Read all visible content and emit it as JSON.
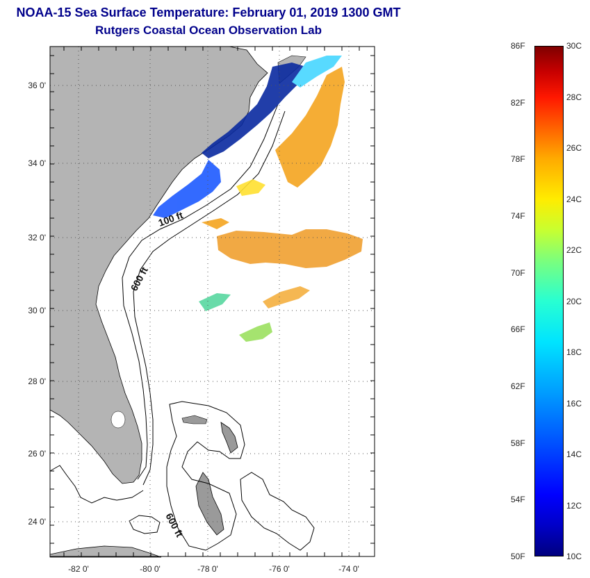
{
  "header": {
    "title": "NOAA-15 Sea Surface Temperature:  February 01, 2019 1300 GMT",
    "subtitle": "Rutgers Coastal Ocean Observation Lab"
  },
  "map": {
    "lat_labels": [
      "36 0'",
      "34 0'",
      "32 0'",
      "30 0'",
      "28 0'",
      "26 0'",
      "24 0'"
    ],
    "lon_labels": [
      "-82 0'",
      "-80 0'",
      "-78 0'",
      "-76 0'",
      "-74 0'"
    ],
    "contour_labels": [
      "100 ft",
      "600 ft",
      "600 ft"
    ],
    "colors": {
      "land": "#b4b4b4",
      "grid": "#555555"
    }
  },
  "colorbar": {
    "fahrenheit": [
      "86F",
      "82F",
      "78F",
      "74F",
      "70F",
      "66F",
      "62F",
      "58F",
      "54F",
      "50F"
    ],
    "celsius": [
      "30C",
      "28C",
      "26C",
      "24C",
      "22C",
      "20C",
      "18C",
      "16C",
      "14C",
      "12C",
      "10C"
    ]
  }
}
